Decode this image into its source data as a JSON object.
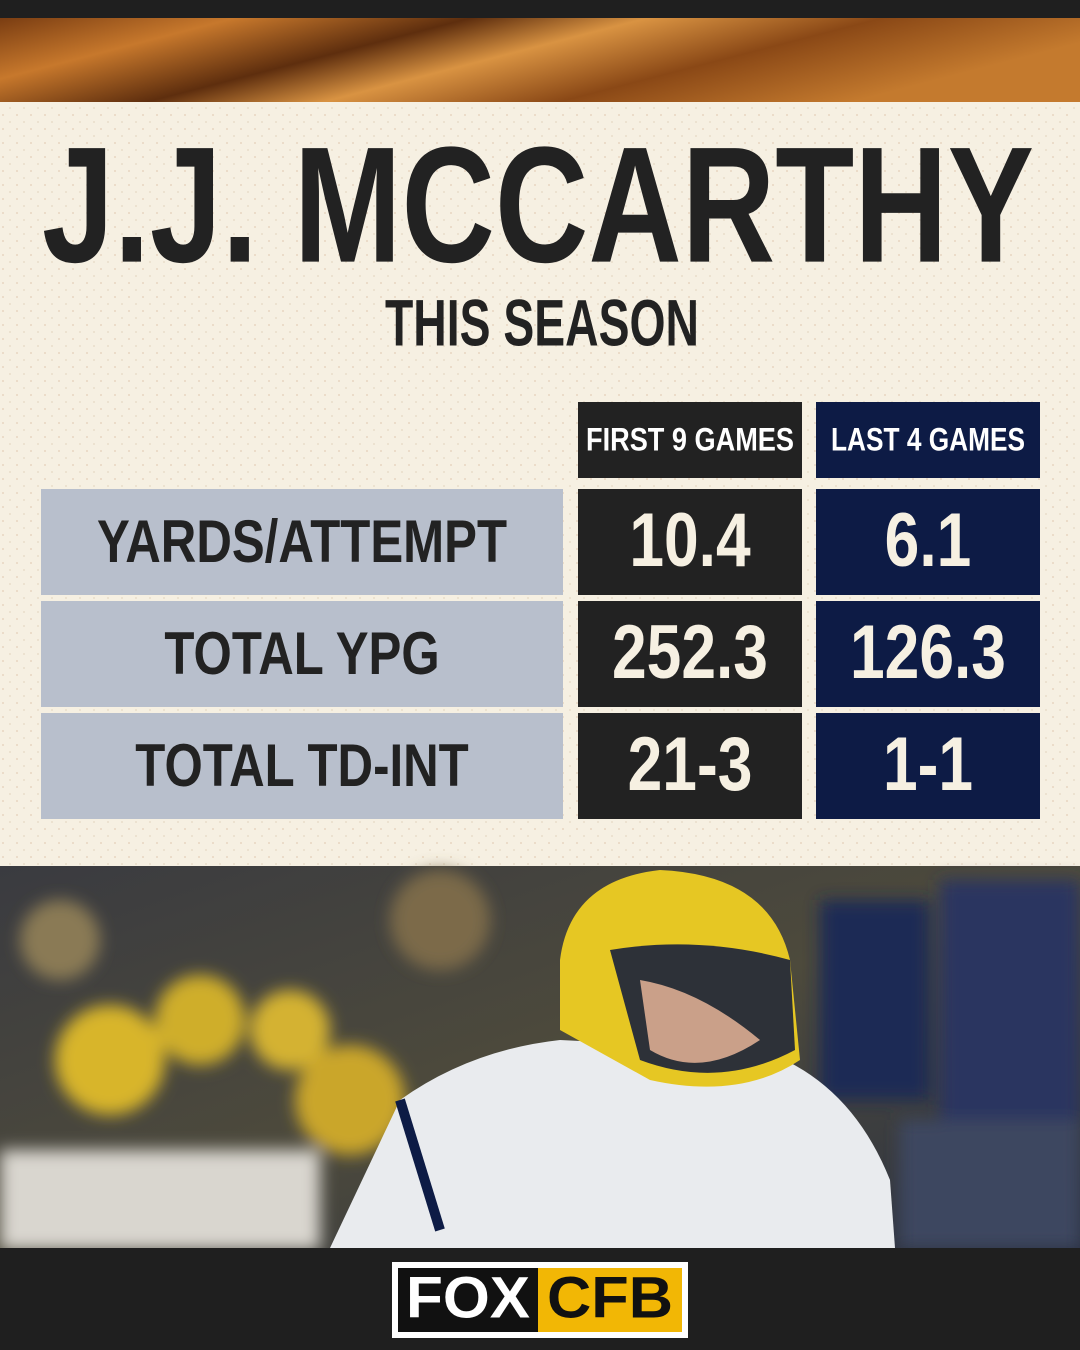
{
  "header": {
    "title": "J.J. MCCARTHY",
    "subtitle": "THIS SEASON"
  },
  "table": {
    "columns": [
      "FIRST  9 GAMES",
      "LAST 4 GAMES"
    ],
    "rows": [
      [
        "YARDS/ATTEMPT",
        "10.4",
        "6.1"
      ],
      [
        "TOTAL YPG",
        "252.3",
        "126.3"
      ],
      [
        "TOTAL TD-INT",
        "21-3",
        "1-1"
      ]
    ]
  },
  "footer": {
    "logo": [
      "FOX",
      "CFB"
    ]
  }
}
